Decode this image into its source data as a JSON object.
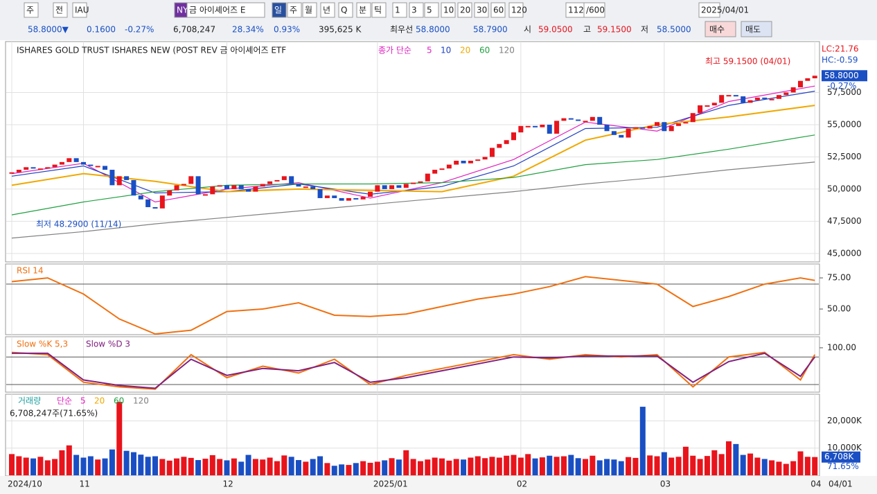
{
  "toolbar": {
    "items": [
      "주",
      "전",
      "IAU",
      "NY",
      "금 아이셰어즈 E",
      "일",
      "주",
      "월",
      "년",
      "Q",
      "분",
      "틱",
      "1",
      "3",
      "5",
      "10",
      "20",
      "30",
      "60",
      "120",
      "112",
      "/600",
      "2025/04/01"
    ]
  },
  "info": {
    "items": [
      "58.8000▼",
      "0.1600",
      "-0.27%",
      "6,708,247",
      "28.34%",
      "0.93%",
      "395,625 K",
      "최우선",
      "58.8000",
      "58.7900",
      "시",
      "59.0500",
      "고",
      "59.1500",
      "저",
      "58.5000",
      "매수",
      "매도"
    ]
  },
  "chart_data": [
    {
      "type": "candlestick",
      "title": "ISHARES GOLD TRUST ISHARES NEW (POST REV  금 아이셰어즈 ETF",
      "legend_label": "종가 단순",
      "up_color": "#e8141c",
      "down_color": "#1a4fc4",
      "closes": [
        51.3,
        51.5,
        51.7,
        51.6,
        51.6,
        51.7,
        51.9,
        52.1,
        52.4,
        52.1,
        51.9,
        51.8,
        51.8,
        51.5,
        50.3,
        51.0,
        50.7,
        49.5,
        49.2,
        48.6,
        48.5,
        49.5,
        49.9,
        50.3,
        50.4,
        51.0,
        49.6,
        49.6,
        50.2,
        50.3,
        50.0,
        50.3,
        50.0,
        49.8,
        50.2,
        50.4,
        50.6,
        50.7,
        51.0,
        50.4,
        50.2,
        50.2,
        50.0,
        49.3,
        49.5,
        49.3,
        49.1,
        49.3,
        49.2,
        49.4,
        49.8,
        50.3,
        50.0,
        50.3,
        50.1,
        50.4,
        50.5,
        50.6,
        51.2,
        51.5,
        51.6,
        51.9,
        52.2,
        52.0,
        52.2,
        52.3,
        52.5,
        53.2,
        53.5,
        53.8,
        54.4,
        54.9,
        54.9,
        54.8,
        55.0,
        54.3,
        55.3,
        55.5,
        55.4,
        55.3,
        55.3,
        55.6,
        55.0,
        54.5,
        54.2,
        54.0,
        54.7,
        54.8,
        54.7,
        54.9,
        55.2,
        54.5,
        54.9,
        55.1,
        55.2,
        55.9,
        56.5,
        56.5,
        56.7,
        57.3,
        57.3,
        57.2,
        56.7,
        56.9,
        57.1,
        57.0,
        57.0,
        57.3,
        57.5,
        57.9,
        58.4,
        58.6,
        58.8
      ],
      "ylim": [
        44.35,
        61.45
      ],
      "yticks": [
        {
          "value": 45,
          "label": "45,0000"
        },
        {
          "value": 47.5,
          "label": "47,5000"
        },
        {
          "value": 50,
          "label": "50,0000"
        },
        {
          "value": 52.5,
          "label": "52,5000"
        },
        {
          "value": 55,
          "label": "55,0000"
        },
        {
          "value": 57.5,
          "label": "57,5000"
        }
      ],
      "x_ticks": [
        {
          "value": 0,
          "label": "2024/10"
        },
        {
          "value": 10,
          "label": "11"
        },
        {
          "value": 30,
          "label": "12"
        },
        {
          "value": 51,
          "label": "2025/01"
        },
        {
          "value": 71,
          "label": "02"
        },
        {
          "value": 91,
          "label": "03"
        },
        {
          "value": 112,
          "label": "04"
        }
      ],
      "last_date": "04/01",
      "ma_x": [
        0,
        10,
        20,
        30,
        40,
        50,
        60,
        70,
        80,
        90,
        100,
        112
      ],
      "series": [
        {
          "name": "5",
          "color": "#e020c0",
          "values": [
            51.2,
            52.0,
            49.0,
            50.0,
            50.5,
            49.3,
            50.5,
            52.3,
            55.2,
            54.5,
            56.8,
            58.0
          ]
        },
        {
          "name": "10",
          "color": "#2040c0",
          "values": [
            51.0,
            51.8,
            49.7,
            49.8,
            50.4,
            49.6,
            50.2,
            51.8,
            54.7,
            54.8,
            56.5,
            57.6
          ]
        },
        {
          "name": "20",
          "color": "#f0a800",
          "values": [
            50.3,
            51.2,
            50.6,
            49.8,
            50.0,
            49.9,
            49.8,
            51.0,
            53.8,
            55.0,
            55.6,
            56.5
          ]
        },
        {
          "name": "60",
          "color": "#20a040",
          "values": [
            48.0,
            49.0,
            49.8,
            50.3,
            50.4,
            50.4,
            50.5,
            50.9,
            51.9,
            52.3,
            53.1,
            54.2
          ]
        },
        {
          "name": "120",
          "color": "#808080",
          "values": [
            46.2,
            46.7,
            47.3,
            47.8,
            48.3,
            48.8,
            49.3,
            49.8,
            50.4,
            50.9,
            51.5,
            52.1
          ]
        }
      ],
      "high_note": "최고 59.1500 (04/01)",
      "low_note": "최저 48.2900 (11/14)",
      "lc": "LC:21.76",
      "hc": "HC:-0.59",
      "last_label": "58.8000",
      "last_change": "-0.27%"
    },
    {
      "type": "line",
      "title": "RSI 14",
      "color": "#f07010",
      "x": [
        0,
        5,
        10,
        15,
        20,
        25,
        30,
        35,
        40,
        45,
        50,
        55,
        60,
        65,
        70,
        75,
        80,
        85,
        90,
        95,
        100,
        105,
        110,
        112
      ],
      "values": [
        72,
        75,
        62,
        42,
        30,
        33,
        48,
        50,
        55,
        45,
        44,
        46,
        52,
        58,
        62,
        68,
        76,
        73,
        70,
        52,
        60,
        70,
        75,
        73
      ],
      "ylim": [
        30,
        85.6
      ],
      "yticks": [
        {
          "value": 75,
          "label": "75.00"
        },
        {
          "value": 50,
          "label": "50.00"
        }
      ],
      "levels": [
        70
      ]
    },
    {
      "type": "line",
      "x": [
        0,
        5,
        10,
        15,
        20,
        25,
        30,
        35,
        40,
        45,
        50,
        55,
        60,
        65,
        70,
        75,
        80,
        85,
        90,
        95,
        100,
        105,
        110,
        112
      ],
      "series": [
        {
          "name": "Slow %K 5,3",
          "color": "#f07010",
          "values": [
            90,
            85,
            25,
            15,
            10,
            85,
            35,
            60,
            45,
            75,
            20,
            40,
            55,
            70,
            85,
            75,
            85,
            80,
            85,
            15,
            80,
            90,
            30,
            85
          ]
        },
        {
          "name": "Slow %D 3",
          "color": "#802080",
          "values": [
            88,
            88,
            30,
            18,
            12,
            75,
            40,
            55,
            50,
            68,
            25,
            35,
            50,
            65,
            80,
            78,
            82,
            82,
            82,
            25,
            70,
            88,
            38,
            80
          ]
        }
      ],
      "ylim": [
        5,
        121
      ],
      "yticks": [
        {
          "value": 100,
          "label": "100.00"
        }
      ],
      "levels": [
        80,
        20
      ]
    },
    {
      "type": "bar",
      "title": "거래량",
      "ma_label": "단순",
      "ma_periods": [
        {
          "name": "5",
          "color": "#e020c0"
        },
        {
          "name": "20",
          "color": "#f0a800"
        },
        {
          "name": "60",
          "color": "#20a040"
        },
        {
          "name": "120",
          "color": "#808080"
        }
      ],
      "summary": "6,708,247주(71.65%)",
      "values": [
        7800,
        7000,
        6500,
        6200,
        6800,
        5500,
        6000,
        9200,
        11000,
        7500,
        6500,
        7000,
        5800,
        6200,
        9500,
        27000,
        9000,
        8500,
        7600,
        6800,
        7000,
        6000,
        5400,
        6200,
        6800,
        6400,
        5600,
        6100,
        7400,
        6000,
        5500,
        6200,
        5000,
        7500,
        6000,
        5800,
        6500,
        5200,
        7300,
        6800,
        5600,
        5000,
        6000,
        7000,
        4500,
        3500,
        4000,
        3800,
        4500,
        5200,
        4600,
        5000,
        5500,
        6300,
        5800,
        9200,
        6000,
        5200,
        5800,
        6500,
        6200,
        5400,
        6000,
        5800,
        6500,
        7000,
        6300,
        6800,
        6500,
        7200,
        7500,
        6500,
        7800,
        6200,
        6600,
        7200,
        6800,
        7000,
        7500,
        6300,
        6000,
        7200,
        5500,
        6000,
        5800,
        5200,
        6700,
        6400,
        25200,
        7300,
        7000,
        8500,
        6500,
        6800,
        10500,
        7200,
        6000,
        7100,
        9200,
        7800,
        12500,
        11500,
        7500,
        8000,
        6500,
        6000,
        5500,
        5000,
        4200,
        5200,
        8800,
        6800,
        6708
      ],
      "ylim": [
        0,
        27000
      ],
      "yticks": [
        {
          "value": 10000,
          "label": "10,000K"
        },
        {
          "value": 20000,
          "label": "20,000K"
        }
      ],
      "last_label": "6,708K",
      "last_pct": "71.65%"
    }
  ]
}
